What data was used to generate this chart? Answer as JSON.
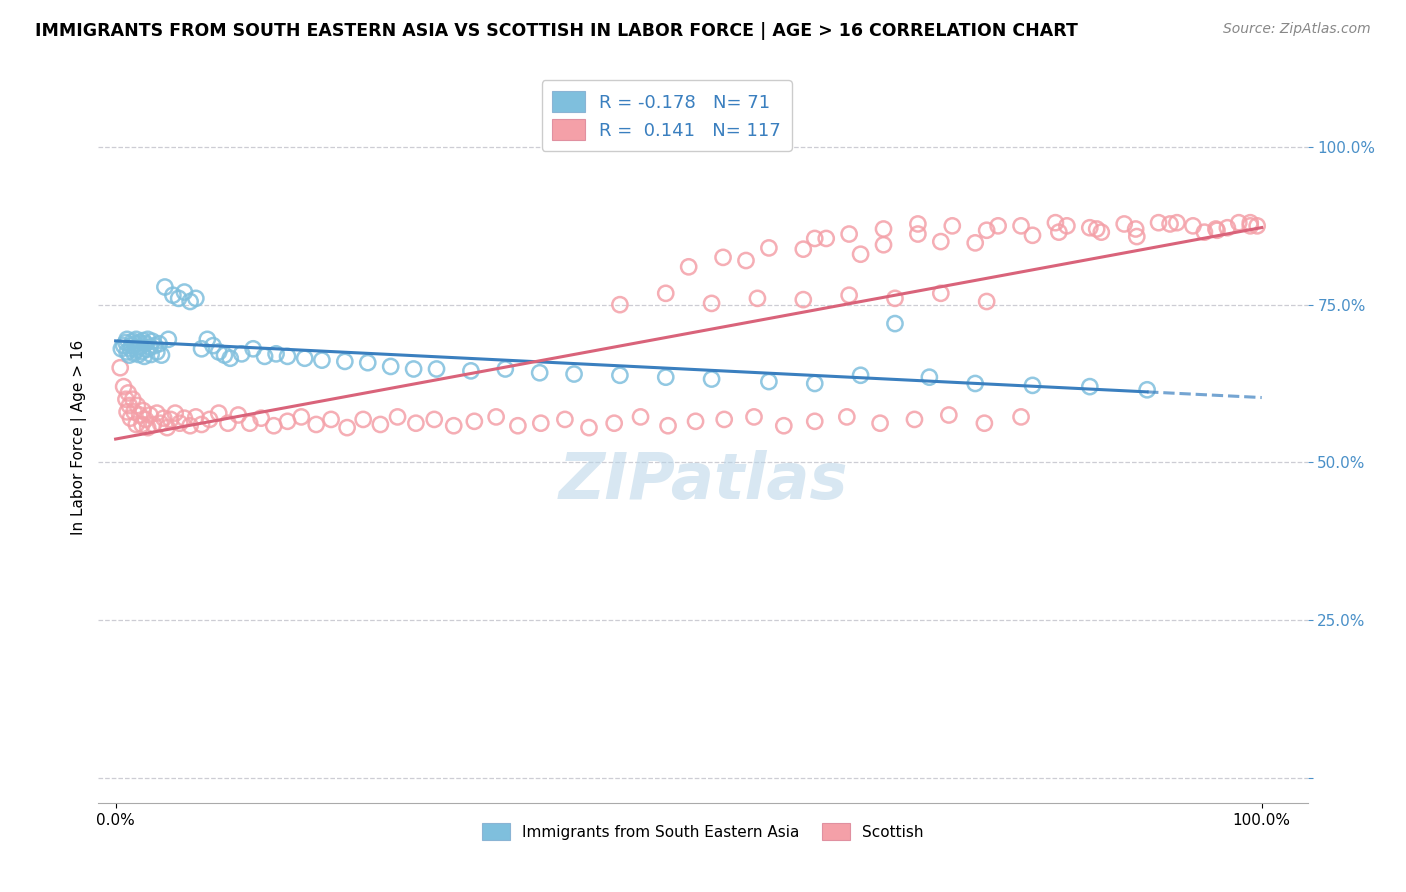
{
  "title": "IMMIGRANTS FROM SOUTH EASTERN ASIA VS SCOTTISH IN LABOR FORCE | AGE > 16 CORRELATION CHART",
  "source": "Source: ZipAtlas.com",
  "ylabel": "In Labor Force | Age > 16",
  "blue_R": -0.178,
  "blue_N": 71,
  "pink_R": 0.141,
  "pink_N": 117,
  "blue_color": "#7fbfdd",
  "pink_color": "#f4a0a8",
  "blue_line_color": "#3a7fbf",
  "pink_line_color": "#d9637a",
  "watermark": "ZIPatlas",
  "legend_label_blue": "Immigrants from South Eastern Asia",
  "legend_label_pink": "Scottish",
  "ytick_labels": [
    "",
    "25.0%",
    "50.0%",
    "75.0%",
    "100.0%"
  ],
  "ytick_positions": [
    0.0,
    0.25,
    0.5,
    0.75,
    1.0
  ],
  "blue_scatter_x": [
    0.005,
    0.007,
    0.009,
    0.01,
    0.01,
    0.012,
    0.013,
    0.014,
    0.015,
    0.016,
    0.017,
    0.018,
    0.018,
    0.019,
    0.02,
    0.021,
    0.022,
    0.023,
    0.024,
    0.025,
    0.026,
    0.027,
    0.028,
    0.03,
    0.031,
    0.032,
    0.034,
    0.036,
    0.038,
    0.04,
    0.043,
    0.046,
    0.05,
    0.055,
    0.06,
    0.065,
    0.07,
    0.075,
    0.08,
    0.085,
    0.09,
    0.095,
    0.1,
    0.11,
    0.12,
    0.13,
    0.14,
    0.15,
    0.165,
    0.18,
    0.2,
    0.22,
    0.24,
    0.26,
    0.28,
    0.31,
    0.34,
    0.37,
    0.4,
    0.44,
    0.48,
    0.52,
    0.57,
    0.61,
    0.65,
    0.68,
    0.71,
    0.75,
    0.8,
    0.85,
    0.9
  ],
  "blue_scatter_y": [
    0.68,
    0.685,
    0.69,
    0.675,
    0.695,
    0.67,
    0.68,
    0.685,
    0.692,
    0.673,
    0.688,
    0.678,
    0.695,
    0.682,
    0.671,
    0.69,
    0.684,
    0.676,
    0.693,
    0.668,
    0.688,
    0.679,
    0.695,
    0.683,
    0.671,
    0.692,
    0.685,
    0.675,
    0.688,
    0.67,
    0.778,
    0.695,
    0.765,
    0.76,
    0.77,
    0.755,
    0.76,
    0.68,
    0.695,
    0.685,
    0.675,
    0.67,
    0.665,
    0.672,
    0.68,
    0.668,
    0.672,
    0.668,
    0.665,
    0.662,
    0.66,
    0.658,
    0.652,
    0.648,
    0.648,
    0.645,
    0.648,
    0.642,
    0.64,
    0.638,
    0.635,
    0.632,
    0.628,
    0.625,
    0.638,
    0.72,
    0.635,
    0.625,
    0.622,
    0.62,
    0.615
  ],
  "pink_scatter_x": [
    0.004,
    0.007,
    0.009,
    0.01,
    0.011,
    0.012,
    0.013,
    0.015,
    0.016,
    0.018,
    0.019,
    0.021,
    0.023,
    0.024,
    0.026,
    0.028,
    0.03,
    0.033,
    0.036,
    0.039,
    0.042,
    0.045,
    0.048,
    0.052,
    0.056,
    0.06,
    0.065,
    0.07,
    0.075,
    0.082,
    0.09,
    0.098,
    0.107,
    0.117,
    0.127,
    0.138,
    0.15,
    0.162,
    0.175,
    0.188,
    0.202,
    0.216,
    0.231,
    0.246,
    0.262,
    0.278,
    0.295,
    0.313,
    0.332,
    0.351,
    0.371,
    0.392,
    0.413,
    0.435,
    0.458,
    0.482,
    0.506,
    0.531,
    0.557,
    0.583,
    0.61,
    0.638,
    0.667,
    0.697,
    0.727,
    0.758,
    0.79,
    0.823,
    0.856,
    0.891,
    0.926,
    0.961,
    0.996,
    0.55,
    0.6,
    0.62,
    0.65,
    0.67,
    0.7,
    0.72,
    0.75,
    0.77,
    0.8,
    0.83,
    0.86,
    0.89,
    0.92,
    0.95,
    0.97,
    0.99,
    0.5,
    0.53,
    0.57,
    0.61,
    0.64,
    0.67,
    0.7,
    0.73,
    0.76,
    0.79,
    0.82,
    0.85,
    0.88,
    0.91,
    0.94,
    0.96,
    0.98,
    0.99,
    0.44,
    0.48,
    0.52,
    0.56,
    0.6,
    0.64,
    0.68,
    0.72,
    0.76
  ],
  "pink_scatter_y": [
    0.65,
    0.62,
    0.6,
    0.58,
    0.61,
    0.59,
    0.57,
    0.6,
    0.58,
    0.56,
    0.59,
    0.575,
    0.56,
    0.582,
    0.568,
    0.555,
    0.575,
    0.56,
    0.578,
    0.562,
    0.57,
    0.555,
    0.568,
    0.578,
    0.562,
    0.57,
    0.558,
    0.572,
    0.56,
    0.568,
    0.578,
    0.562,
    0.575,
    0.562,
    0.57,
    0.558,
    0.565,
    0.572,
    0.56,
    0.568,
    0.555,
    0.568,
    0.56,
    0.572,
    0.562,
    0.568,
    0.558,
    0.565,
    0.572,
    0.558,
    0.562,
    0.568,
    0.555,
    0.562,
    0.572,
    0.558,
    0.565,
    0.568,
    0.572,
    0.558,
    0.565,
    0.572,
    0.562,
    0.568,
    0.575,
    0.562,
    0.572,
    0.865,
    0.87,
    0.858,
    0.88,
    0.868,
    0.875,
    0.82,
    0.838,
    0.855,
    0.83,
    0.845,
    0.862,
    0.85,
    0.848,
    0.875,
    0.86,
    0.875,
    0.865,
    0.87,
    0.878,
    0.865,
    0.872,
    0.88,
    0.81,
    0.825,
    0.84,
    0.855,
    0.862,
    0.87,
    0.878,
    0.875,
    0.868,
    0.875,
    0.88,
    0.872,
    0.878,
    0.88,
    0.875,
    0.87,
    0.88,
    0.875,
    0.75,
    0.768,
    0.752,
    0.76,
    0.758,
    0.765,
    0.76,
    0.768,
    0.755
  ]
}
